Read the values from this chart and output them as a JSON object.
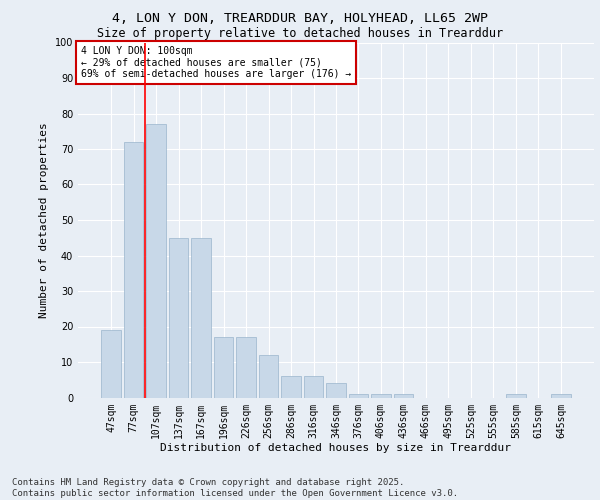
{
  "title": "4, LON Y DON, TREARDDUR BAY, HOLYHEAD, LL65 2WP",
  "subtitle": "Size of property relative to detached houses in Trearddur",
  "xlabel": "Distribution of detached houses by size in Trearddur",
  "ylabel": "Number of detached properties",
  "categories": [
    "47sqm",
    "77sqm",
    "107sqm",
    "137sqm",
    "167sqm",
    "196sqm",
    "226sqm",
    "256sqm",
    "286sqm",
    "316sqm",
    "346sqm",
    "376sqm",
    "406sqm",
    "436sqm",
    "466sqm",
    "495sqm",
    "525sqm",
    "555sqm",
    "585sqm",
    "615sqm",
    "645sqm"
  ],
  "values": [
    19,
    72,
    77,
    45,
    45,
    17,
    17,
    12,
    6,
    6,
    4,
    1,
    1,
    1,
    0,
    0,
    0,
    0,
    1,
    0,
    1
  ],
  "bar_color": "#c8d8e8",
  "bar_edgecolor": "#9ab5cc",
  "redline_index": 1,
  "ylim": [
    0,
    100
  ],
  "yticks": [
    0,
    10,
    20,
    30,
    40,
    50,
    60,
    70,
    80,
    90,
    100
  ],
  "annotation_text": "4 LON Y DON: 100sqm\n← 29% of detached houses are smaller (75)\n69% of semi-detached houses are larger (176) →",
  "annotation_box_color": "#ffffff",
  "annotation_box_edgecolor": "#cc0000",
  "footer_line1": "Contains HM Land Registry data © Crown copyright and database right 2025.",
  "footer_line2": "Contains public sector information licensed under the Open Government Licence v3.0.",
  "bg_color": "#e8eef5",
  "plot_bg_color": "#e8eef5",
  "grid_color": "#ffffff",
  "title_fontsize": 9.5,
  "subtitle_fontsize": 8.5,
  "axis_label_fontsize": 8,
  "tick_fontsize": 7,
  "annotation_fontsize": 7,
  "footer_fontsize": 6.5
}
